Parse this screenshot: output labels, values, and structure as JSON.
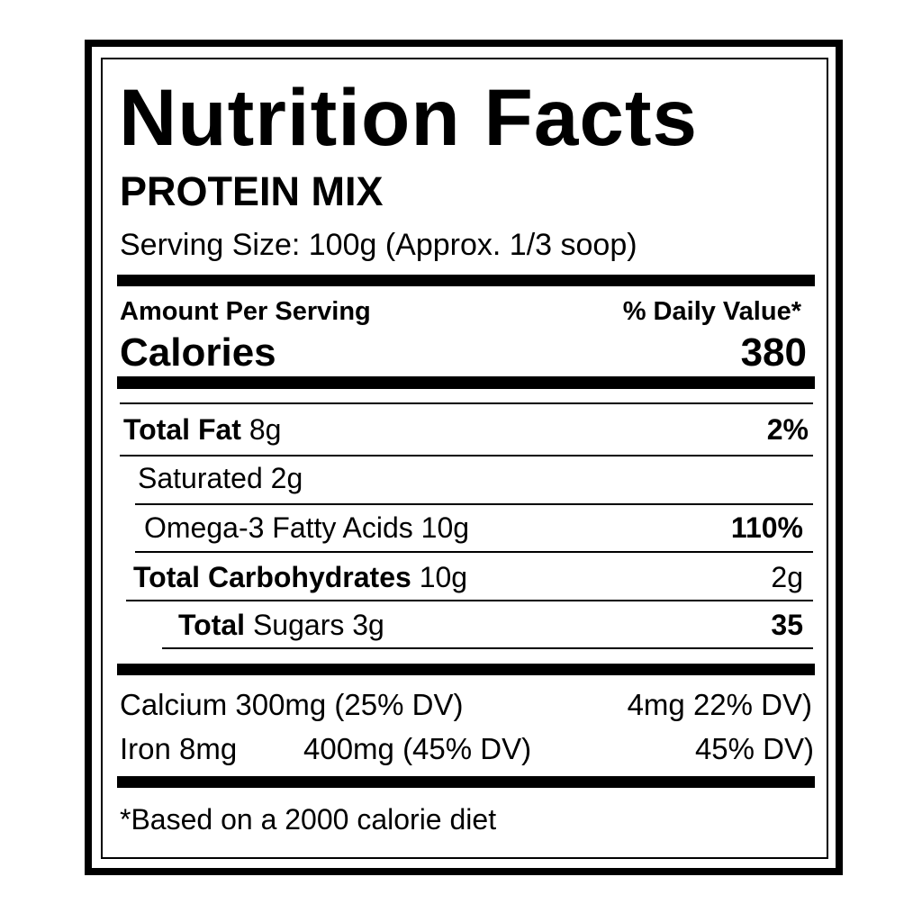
{
  "label": {
    "title": "Nutrition Facts",
    "product": "PROTEIN MIX",
    "serving_size": "Serving Size: 100g (Approx. 1/3 soop)",
    "amount_per_serving": "Amount Per Serving",
    "daily_value_header": "% Daily Value*",
    "calories_label": "Calories",
    "calories_value": "380",
    "rows": [
      {
        "bold": "Total Fat",
        "text": " 8g",
        "value": "2%"
      },
      {
        "bold": "",
        "text": "Saturated 2g",
        "value": ""
      },
      {
        "bold": "",
        "text": "Omega-3 Fatty Acids 10g",
        "value": "110%"
      },
      {
        "bold": "Total Carbohydrates",
        "text": " 10g",
        "value": "2g"
      },
      {
        "bold": "Total",
        "text": " Sugars 3g",
        "value": "35"
      }
    ],
    "minerals": [
      {
        "left": "Calcium 300mg (25% DV)",
        "right": "4mg 22% DV)"
      },
      {
        "left": "Iron 8mg",
        "middle": "400mg (45% DV)",
        "right": "45% DV)"
      }
    ],
    "footnote": "*Based on a 2000 calorie diet"
  }
}
